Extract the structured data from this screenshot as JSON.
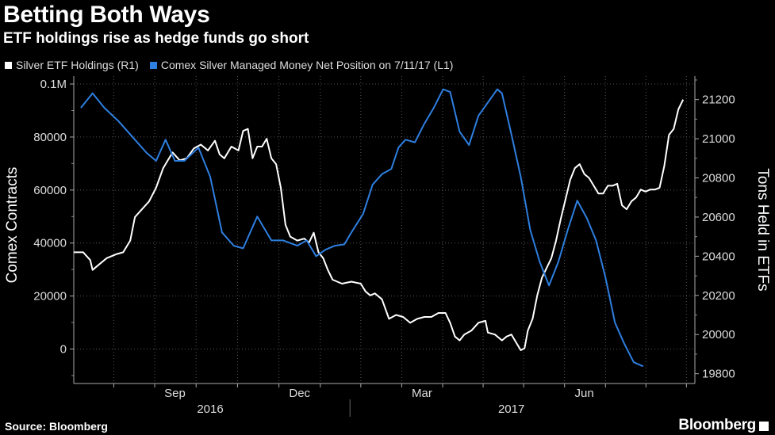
{
  "chart_data": {
    "type": "line",
    "title": "Betting Both Ways",
    "subtitle": "ETF holdings rise as hedge funds go short",
    "source": "Source: Bloomberg",
    "brand": "Bloomberg",
    "y_left": {
      "label": "Comex Contracts",
      "range": [
        -13000,
        103000
      ],
      "ticks": [
        100000,
        80000,
        60000,
        40000,
        20000,
        0
      ],
      "tick_labels": [
        "0.1M",
        "80000",
        "60000",
        "40000",
        "20000",
        "0"
      ]
    },
    "y_right": {
      "label": "Tons Held in ETFs",
      "range": [
        19750,
        21320
      ],
      "ticks": [
        21200,
        21000,
        20800,
        20600,
        20400,
        20200,
        20000,
        19800
      ],
      "tick_labels": [
        "21200",
        "21000",
        "20800",
        "20600",
        "20400",
        "20200",
        "20000",
        "19800"
      ]
    },
    "x_axis": {
      "months": [
        "Sep",
        "Dec",
        "Mar",
        "Jun"
      ],
      "years": [
        "2016",
        "2017"
      ]
    },
    "series": [
      {
        "name": "Silver ETF Holdings (R1)",
        "axis": "right",
        "color": "#ffffff",
        "points": [
          [
            0.0,
            20420
          ],
          [
            2.0,
            20420
          ],
          [
            3.5,
            20380
          ],
          [
            4.0,
            20330
          ],
          [
            5.5,
            20360
          ],
          [
            7.0,
            20390
          ],
          [
            9.0,
            20410
          ],
          [
            10.5,
            20420
          ],
          [
            12.0,
            20480
          ],
          [
            13.0,
            20600
          ],
          [
            14.5,
            20640
          ],
          [
            16.0,
            20680
          ],
          [
            17.5,
            20750
          ],
          [
            19.0,
            20850
          ],
          [
            20.0,
            20890
          ],
          [
            21.0,
            20930
          ],
          [
            22.5,
            20890
          ],
          [
            24.0,
            20900
          ],
          [
            25.5,
            20950
          ],
          [
            27.0,
            20970
          ],
          [
            28.5,
            20940
          ],
          [
            30.0,
            20990
          ],
          [
            31.0,
            20920
          ],
          [
            32.0,
            20900
          ],
          [
            33.5,
            20960
          ],
          [
            35.0,
            20940
          ],
          [
            36.0,
            21040
          ],
          [
            37.0,
            21050
          ],
          [
            38.0,
            20900
          ],
          [
            39.0,
            20960
          ],
          [
            40.0,
            20960
          ],
          [
            41.0,
            21000
          ],
          [
            42.0,
            20900
          ],
          [
            43.0,
            20870
          ],
          [
            44.0,
            20750
          ],
          [
            45.0,
            20560
          ],
          [
            46.0,
            20500
          ],
          [
            47.5,
            20480
          ],
          [
            49.0,
            20490
          ],
          [
            50.0,
            20470
          ],
          [
            51.0,
            20520
          ],
          [
            52.0,
            20420
          ],
          [
            53.0,
            20390
          ],
          [
            54.0,
            20330
          ],
          [
            55.0,
            20280
          ],
          [
            57.0,
            20260
          ],
          [
            59.0,
            20270
          ],
          [
            61.0,
            20260
          ],
          [
            62.0,
            20220
          ],
          [
            63.0,
            20200
          ],
          [
            64.0,
            20210
          ],
          [
            65.5,
            20180
          ],
          [
            67.0,
            20080
          ],
          [
            68.5,
            20100
          ],
          [
            70.0,
            20090
          ],
          [
            71.5,
            20060
          ],
          [
            73.0,
            20080
          ],
          [
            74.5,
            20090
          ],
          [
            76.0,
            20090
          ],
          [
            77.5,
            20110
          ],
          [
            79.0,
            20110
          ],
          [
            80.0,
            20060
          ],
          [
            81.0,
            19990
          ],
          [
            82.0,
            19970
          ],
          [
            83.0,
            20000
          ],
          [
            84.5,
            20020
          ],
          [
            86.0,
            20060
          ],
          [
            87.5,
            20070
          ],
          [
            88.0,
            20010
          ],
          [
            89.5,
            20000
          ],
          [
            91.0,
            19970
          ],
          [
            92.0,
            19990
          ],
          [
            93.0,
            20000
          ],
          [
            94.0,
            19960
          ],
          [
            95.0,
            19920
          ],
          [
            95.8,
            19930
          ],
          [
            96.5,
            20020
          ],
          [
            97.5,
            20080
          ],
          [
            98.5,
            20200
          ],
          [
            99.5,
            20290
          ],
          [
            100.5,
            20340
          ],
          [
            101.5,
            20390
          ],
          [
            102.5,
            20480
          ],
          [
            103.5,
            20590
          ],
          [
            104.5,
            20690
          ],
          [
            105.5,
            20790
          ],
          [
            106.5,
            20850
          ],
          [
            107.5,
            20870
          ],
          [
            108.5,
            20820
          ],
          [
            109.5,
            20800
          ],
          [
            110.5,
            20760
          ],
          [
            111.5,
            20720
          ],
          [
            112.5,
            20720
          ],
          [
            113.5,
            20760
          ],
          [
            114.5,
            20760
          ],
          [
            115.5,
            20770
          ],
          [
            116.5,
            20660
          ],
          [
            117.5,
            20640
          ],
          [
            118.5,
            20680
          ],
          [
            119.5,
            20700
          ],
          [
            120.5,
            20740
          ],
          [
            121.5,
            20730
          ],
          [
            122.5,
            20740
          ],
          [
            123.5,
            20740
          ],
          [
            124.5,
            20750
          ],
          [
            125.5,
            20860
          ],
          [
            126.5,
            21020
          ],
          [
            127.5,
            21050
          ],
          [
            128.5,
            21150
          ],
          [
            129.5,
            21200
          ]
        ]
      },
      {
        "name": "Comex Silver Managed Money Net Position on 7/11/17 (L1)",
        "axis": "left",
        "color": "#2e7fe0",
        "points": [
          [
            1.5,
            91000
          ],
          [
            4.0,
            96500
          ],
          [
            6.5,
            91000
          ],
          [
            9.5,
            86000
          ],
          [
            12.5,
            80000
          ],
          [
            15.5,
            74000
          ],
          [
            17.5,
            71000
          ],
          [
            19.5,
            79000
          ],
          [
            21.5,
            71000
          ],
          [
            23.5,
            71000
          ],
          [
            26.5,
            76000
          ],
          [
            29.0,
            65000
          ],
          [
            31.5,
            44000
          ],
          [
            34.0,
            39000
          ],
          [
            36.0,
            38000
          ],
          [
            39.0,
            50000
          ],
          [
            42.0,
            41000
          ],
          [
            44.5,
            41000
          ],
          [
            47.5,
            39000
          ],
          [
            49.5,
            41000
          ],
          [
            51.5,
            35000
          ],
          [
            53.5,
            37500
          ],
          [
            55.5,
            39000
          ],
          [
            57.5,
            39500
          ],
          [
            59.0,
            44000
          ],
          [
            61.5,
            51000
          ],
          [
            63.5,
            62000
          ],
          [
            65.5,
            66000
          ],
          [
            67.5,
            68000
          ],
          [
            69.0,
            76000
          ],
          [
            70.5,
            79000
          ],
          [
            72.5,
            78000
          ],
          [
            74.5,
            85000
          ],
          [
            76.5,
            91000
          ],
          [
            78.5,
            98000
          ],
          [
            80.0,
            97000
          ],
          [
            82.0,
            82000
          ],
          [
            84.0,
            77000
          ],
          [
            86.0,
            88000
          ],
          [
            88.0,
            93000
          ],
          [
            90.0,
            98000
          ],
          [
            91.0,
            96500
          ],
          [
            93.0,
            81000
          ],
          [
            95.0,
            65000
          ],
          [
            97.0,
            45000
          ],
          [
            99.0,
            33000
          ],
          [
            101.0,
            24000
          ],
          [
            103.0,
            33000
          ],
          [
            105.0,
            45000
          ],
          [
            107.0,
            56000
          ],
          [
            109.0,
            49500
          ],
          [
            111.0,
            41000
          ],
          [
            113.0,
            27000
          ],
          [
            115.0,
            10000
          ],
          [
            117.0,
            2000
          ],
          [
            119.0,
            -5000
          ],
          [
            121.0,
            -6500
          ]
        ]
      }
    ]
  }
}
